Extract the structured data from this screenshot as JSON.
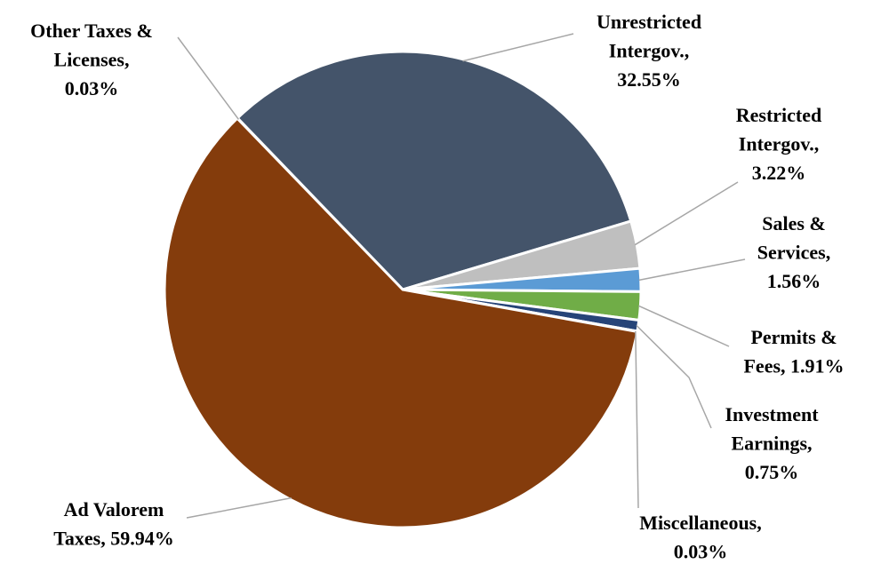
{
  "chart_data": {
    "type": "pie",
    "labels": [
      [
        "Other Taxes &",
        "Licenses,",
        "0.03%"
      ],
      [
        "Unrestricted",
        "Intergov.,",
        "32.55%"
      ],
      [
        "Restricted",
        "Intergov.,",
        "3.22%"
      ],
      [
        "Sales &",
        "Services,",
        "1.56%"
      ],
      [
        "Permits &",
        "Fees, 1.91%"
      ],
      [
        "Investment",
        "Earnings,",
        "0.75%"
      ],
      [
        "Miscellaneous,",
        "0.03%"
      ],
      [
        "Ad Valorem",
        "Taxes, 59.94%"
      ]
    ],
    "values": [
      0.03,
      32.55,
      3.22,
      1.56,
      1.91,
      0.75,
      0.03,
      59.94
    ],
    "colors": [
      "#a5a5a5",
      "#44546a",
      "#bfbfbf",
      "#5b9bd5",
      "#70ad47",
      "#264478",
      "#7f7f7f",
      "#843c0c"
    ],
    "start_angle": 316
  }
}
